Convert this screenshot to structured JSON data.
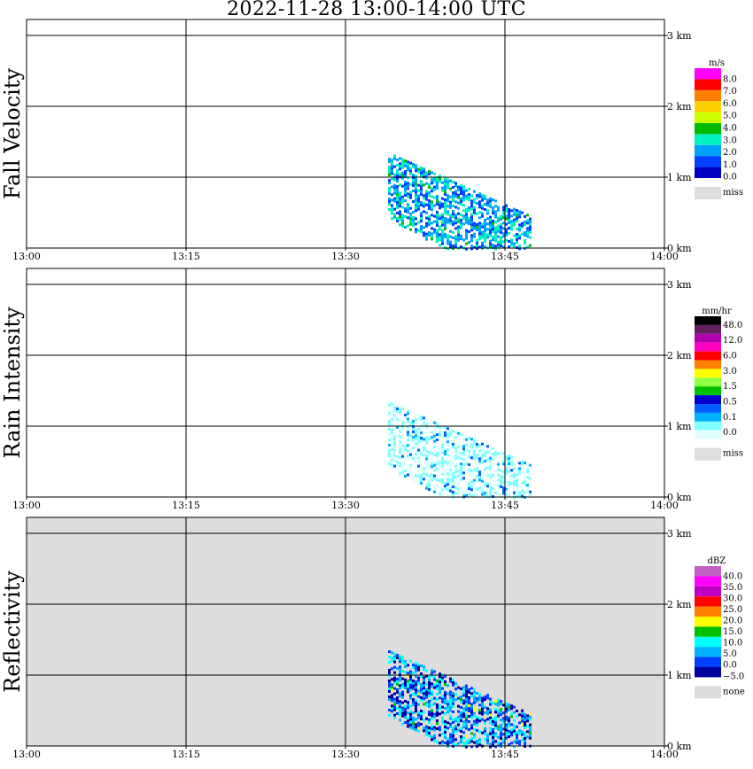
{
  "title": "2022-11-28   13:00-14:00 UTC",
  "chart_data": [
    {
      "type": "heatmap",
      "ylabel": "Fall Velocity",
      "background": "#ffffff",
      "x_ticks": [
        "13:00",
        "13:15",
        "13:30",
        "13:45",
        "14:00"
      ],
      "y_ticks": [
        "0 km",
        "1 km",
        "2 km",
        "3 km"
      ],
      "colorbar": {
        "unit": "m/s",
        "labels": [
          "8.0",
          "7.0",
          "6.0",
          "5.0",
          "4.0",
          "3.0",
          "2.0",
          "1.0",
          "0.0"
        ],
        "colors": [
          "#ff00ff",
          "#ff0000",
          "#ff8000",
          "#ffd000",
          "#ccff00",
          "#00bb00",
          "#00f0c0",
          "#00a0ff",
          "#0040ff",
          "#0000c0"
        ],
        "miss_label": "miss"
      }
    },
    {
      "type": "heatmap",
      "ylabel": "Rain Intensity",
      "background": "#ffffff",
      "x_ticks": [
        "13:00",
        "13:15",
        "13:30",
        "13:45",
        "14:00"
      ],
      "y_ticks": [
        "0 km",
        "1 km",
        "2 km",
        "3 km"
      ],
      "colorbar": {
        "unit": "mm/hr",
        "labels": [
          "48.0",
          "12.0",
          "6.0",
          "3.0",
          "1.5",
          "0.5",
          "0.1",
          "0.0"
        ],
        "colors": [
          "#000000",
          "#602060",
          "#b000b0",
          "#ff00c0",
          "#ff0000",
          "#ff8000",
          "#ffff00",
          "#90ff40",
          "#00c000",
          "#0000d0",
          "#0060ff",
          "#00b0ff",
          "#80ffff",
          "#e0ffff"
        ],
        "miss_label": "miss"
      }
    },
    {
      "type": "heatmap",
      "ylabel": "Reflectivity",
      "background": "#dddddd",
      "x_ticks": [
        "13:00",
        "13:15",
        "13:30",
        "13:45",
        "14:00"
      ],
      "y_ticks": [
        "0 km",
        "1 km",
        "2 km",
        "3 km"
      ],
      "colorbar": {
        "unit": "dBZ",
        "labels": [
          "40.0",
          "35.0",
          "30.0",
          "25.0",
          "20.0",
          "15.0",
          "10.0",
          "5.0",
          "0.0",
          "−5.0"
        ],
        "colors": [
          "#c060c0",
          "#ff00ff",
          "#c000c0",
          "#ff0000",
          "#ff8000",
          "#ffff00",
          "#00c000",
          "#00ffff",
          "#00b0ff",
          "#0040ff",
          "#0000a0"
        ],
        "miss_label": "none"
      }
    }
  ]
}
